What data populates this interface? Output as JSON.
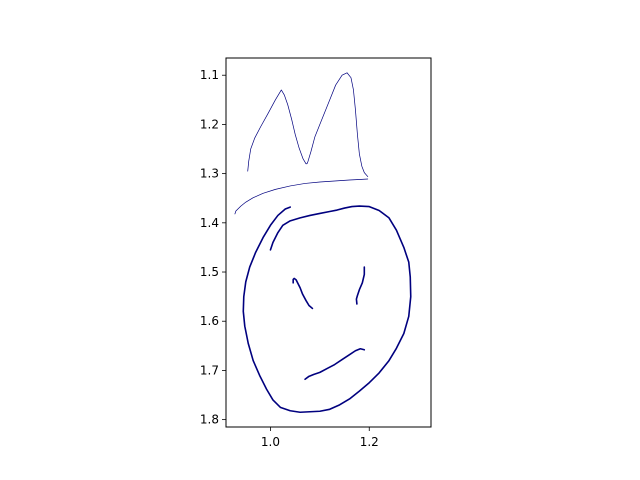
{
  "chart_data": {
    "type": "line",
    "title": "",
    "xlabel": "",
    "ylabel": "",
    "xlim": [
      0.91,
      1.325
    ],
    "ylim": [
      1.815,
      1.065
    ],
    "y_inverted": true,
    "grid": false,
    "legend": "none",
    "aspect": "equal",
    "x_ticks": [
      1.0,
      1.2
    ],
    "x_tick_labels": [
      "1.0",
      "1.2"
    ],
    "y_ticks": [
      1.1,
      1.2,
      1.3,
      1.4,
      1.5,
      1.6,
      1.7,
      1.8
    ],
    "y_tick_labels": [
      "1.1",
      "1.2",
      "1.3",
      "1.4",
      "1.5",
      "1.6",
      "1.7",
      "1.8"
    ],
    "stroke_color": "#00007f",
    "series": [
      {
        "role": "crown-outline",
        "weight": "thin",
        "x": [
          0.954,
          0.956,
          0.96,
          0.968,
          0.98,
          0.995,
          1.01,
          1.022,
          1.028,
          1.035,
          1.043,
          1.05,
          1.058,
          1.066,
          1.072,
          1.074,
          1.076,
          1.082,
          1.09,
          1.1,
          1.11,
          1.12,
          1.132,
          1.145,
          1.155,
          1.163,
          1.168,
          1.172,
          1.176,
          1.18,
          1.185,
          1.19,
          1.197
        ],
        "y": [
          1.295,
          1.275,
          1.25,
          1.228,
          1.205,
          1.178,
          1.15,
          1.13,
          1.14,
          1.16,
          1.19,
          1.22,
          1.248,
          1.27,
          1.28,
          1.28,
          1.275,
          1.255,
          1.225,
          1.2,
          1.175,
          1.15,
          1.12,
          1.1,
          1.095,
          1.105,
          1.13,
          1.17,
          1.22,
          1.26,
          1.285,
          1.298,
          1.306
        ]
      },
      {
        "role": "crown-base",
        "weight": "thin",
        "x": [
          0.928,
          0.93,
          0.94,
          0.95,
          0.965,
          0.985,
          1.01,
          1.04,
          1.07,
          1.1,
          1.13,
          1.16,
          1.18,
          1.197
        ],
        "y": [
          1.382,
          1.376,
          1.366,
          1.358,
          1.349,
          1.34,
          1.332,
          1.325,
          1.32,
          1.317,
          1.315,
          1.313,
          1.312,
          1.311
        ]
      },
      {
        "role": "face-outline",
        "weight": "thick",
        "x": [
          1.04,
          1.03,
          1.015,
          1.0,
          0.985,
          0.97,
          0.958,
          0.95,
          0.946,
          0.945,
          0.948,
          0.955,
          0.965,
          0.978,
          0.992,
          1.005,
          1.02,
          1.04,
          1.06,
          1.08,
          1.1,
          1.12,
          1.14,
          1.16,
          1.18,
          1.2,
          1.22,
          1.24,
          1.255,
          1.27,
          1.28,
          1.284,
          1.283,
          1.28,
          1.27,
          1.255,
          1.24,
          1.22,
          1.2,
          1.18,
          1.165,
          1.15,
          1.135,
          1.12,
          1.1,
          1.08,
          1.06,
          1.04,
          1.025,
          1.015,
          1.005,
          1.0
        ],
        "y": [
          1.368,
          1.372,
          1.385,
          1.405,
          1.43,
          1.46,
          1.49,
          1.52,
          1.55,
          1.58,
          1.61,
          1.645,
          1.68,
          1.71,
          1.738,
          1.76,
          1.775,
          1.782,
          1.785,
          1.784,
          1.783,
          1.779,
          1.77,
          1.758,
          1.742,
          1.725,
          1.705,
          1.68,
          1.655,
          1.625,
          1.59,
          1.55,
          1.51,
          1.48,
          1.45,
          1.415,
          1.39,
          1.375,
          1.367,
          1.366,
          1.367,
          1.37,
          1.374,
          1.377,
          1.381,
          1.385,
          1.39,
          1.396,
          1.405,
          1.42,
          1.44,
          1.455
        ]
      },
      {
        "role": "left-eye",
        "weight": "thick",
        "x": [
          1.046,
          1.046,
          1.048,
          1.052,
          1.055,
          1.06,
          1.065,
          1.072,
          1.078,
          1.085
        ],
        "y": [
          1.522,
          1.515,
          1.513,
          1.516,
          1.522,
          1.532,
          1.545,
          1.558,
          1.568,
          1.574
        ]
      },
      {
        "role": "right-eye",
        "weight": "thick",
        "x": [
          1.19,
          1.19,
          1.186,
          1.18,
          1.176,
          1.174,
          1.175
        ],
        "y": [
          1.49,
          1.505,
          1.522,
          1.536,
          1.548,
          1.555,
          1.565
        ]
      },
      {
        "role": "mouth",
        "weight": "thick",
        "x": [
          1.07,
          1.078,
          1.088,
          1.1,
          1.115,
          1.13,
          1.145,
          1.16,
          1.172,
          1.182,
          1.19
        ],
        "y": [
          1.718,
          1.712,
          1.708,
          1.704,
          1.696,
          1.688,
          1.678,
          1.668,
          1.66,
          1.656,
          1.658
        ]
      }
    ]
  }
}
